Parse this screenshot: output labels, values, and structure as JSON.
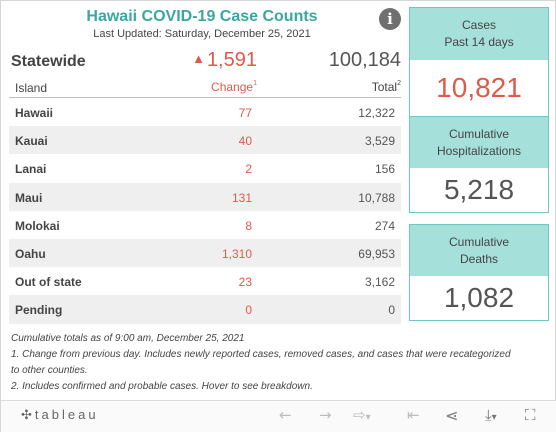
{
  "header": {
    "title": "Hawaii COVID-19 Case Counts",
    "last_updated": "Last Updated: Saturday, December 25, 2021",
    "info_icon": "info-icon"
  },
  "statewide": {
    "label": "Statewide",
    "change_arrow": "▲",
    "change": "1,591",
    "total": "100,184"
  },
  "columns": {
    "island": "Island",
    "change": "Change",
    "change_note": "1",
    "total": "Total",
    "total_note": "2"
  },
  "islands": [
    {
      "name": "Hawaii",
      "change": "77",
      "total": "12,322"
    },
    {
      "name": "Kauai",
      "change": "40",
      "total": "3,529"
    },
    {
      "name": "Lanai",
      "change": "2",
      "total": "156"
    },
    {
      "name": "Maui",
      "change": "131",
      "total": "10,788"
    },
    {
      "name": "Molokai",
      "change": "8",
      "total": "274"
    },
    {
      "name": "Oahu",
      "change": "1,310",
      "total": "69,953"
    },
    {
      "name": "Out of state",
      "change": "23",
      "total": "3,162"
    },
    {
      "name": "Pending",
      "change": "0",
      "total": "0"
    }
  ],
  "cards": {
    "cases": {
      "label_line1": "Cases",
      "label_line2": "Past 14 days",
      "value": "10,821"
    },
    "hospitalizations": {
      "label_line1": "Cumulative",
      "label_line2": "Hospitalizations",
      "value": "5,218"
    },
    "deaths": {
      "label_line1": "Cumulative",
      "label_line2": "Deaths",
      "value": "1,082"
    }
  },
  "footnotes": {
    "asof": "Cumulative totals as of 9:00 am, December 25, 2021",
    "note1": "1. Change from previous day. Includes newly reported cases, removed cases, and cases that were recategorized to other counties.",
    "note2": "2. Includes confirmed and probable cases. Hover to see breakdown."
  },
  "toolbar": {
    "logo_text": "tableau",
    "logo_plus": "✣",
    "undo": "←",
    "redo": "→",
    "revert": "⇨",
    "revert_caret": "▾",
    "reset": "⇤",
    "share": "⋖",
    "download": "⤓",
    "download_caret": "▾",
    "fullscreen": "⛶"
  },
  "colors": {
    "title": "#3aa8a0",
    "change": "#e05a4a",
    "card_header": "#a6e0db",
    "card_border": "#6dc9c1"
  }
}
